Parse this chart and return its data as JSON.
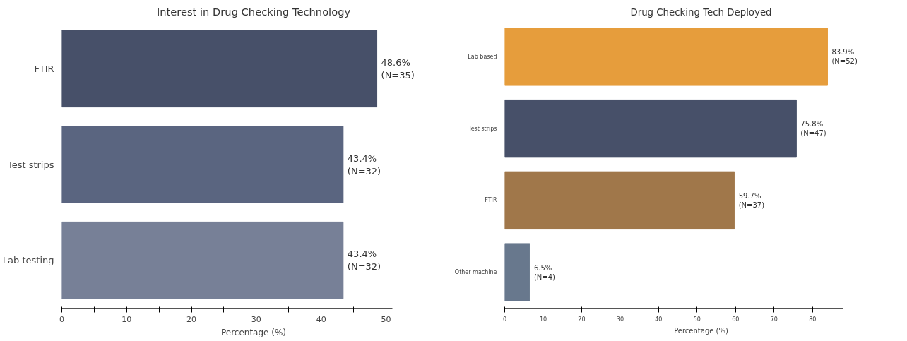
{
  "chart_data": [
    {
      "type": "bar",
      "orientation": "horizontal",
      "title": "Interest in Drug Checking Technology",
      "xlabel": "Percentage (%)",
      "categories": [
        "FTIR",
        "Test strips",
        "Lab testing"
      ],
      "values": [
        48.6,
        43.4,
        43.4
      ],
      "colors": [
        "#475069",
        "#5a6580",
        "#778097"
      ],
      "value_labels": [
        "48.6%\n(N=35)",
        "43.4%\n(N=32)",
        "43.4%\n(N=32)"
      ],
      "xlim": [
        0,
        51
      ],
      "xticks": [
        0,
        {
          "value": 5,
          "label": null
        },
        10,
        {
          "value": 15,
          "label": null
        },
        20,
        {
          "value": 25,
          "label": null
        },
        30,
        {
          "value": 35,
          "label": null
        },
        40,
        {
          "value": 45,
          "label": null
        },
        50
      ],
      "grid": false
    },
    {
      "type": "bar",
      "orientation": "horizontal",
      "title": "Drug Checking Tech Deployed",
      "xlabel": "Percentage (%)",
      "categories": [
        "Lab based",
        "Test strips",
        "FTIR",
        "Other machine"
      ],
      "values": [
        83.9,
        75.8,
        59.7,
        6.5
      ],
      "colors": [
        "#e69d3c",
        "#475069",
        "#a0774a",
        "#68788d"
      ],
      "value_labels": [
        "83.9%\n(N=52)",
        "75.8%\n(N=47)",
        "59.7%\n(N=37)",
        "6.5%\n(N=4)"
      ],
      "xlim": [
        0,
        88
      ],
      "xticks": [
        0,
        10,
        20,
        30,
        40,
        50,
        60,
        70,
        80
      ],
      "grid": false
    }
  ]
}
